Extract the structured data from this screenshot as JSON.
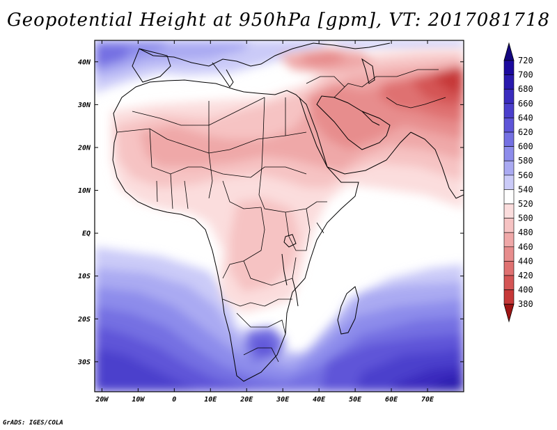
{
  "title": "Geopotential Height at 950hPa [gpm], VT: 2017081718",
  "credit": "GrADS: IGES/COLA",
  "map": {
    "region": "Africa, Arabia and western Indian Ocean",
    "lat_range": [
      -37,
      45
    ],
    "lon_range": [
      -22,
      80
    ],
    "lat_ticks": [
      {
        "value": 40,
        "label": "40N"
      },
      {
        "value": 30,
        "label": "30N"
      },
      {
        "value": 20,
        "label": "20N"
      },
      {
        "value": 10,
        "label": "10N"
      },
      {
        "value": 0,
        "label": "EQ"
      },
      {
        "value": -10,
        "label": "10S"
      },
      {
        "value": -20,
        "label": "20S"
      },
      {
        "value": -30,
        "label": "30S"
      }
    ],
    "lon_ticks": [
      {
        "value": -20,
        "label": "20W"
      },
      {
        "value": -10,
        "label": "10W"
      },
      {
        "value": 0,
        "label": "0"
      },
      {
        "value": 10,
        "label": "10E"
      },
      {
        "value": 20,
        "label": "20E"
      },
      {
        "value": 30,
        "label": "30E"
      },
      {
        "value": 40,
        "label": "40E"
      },
      {
        "value": 50,
        "label": "50E"
      },
      {
        "value": 60,
        "label": "60E"
      },
      {
        "value": 70,
        "label": "70E"
      }
    ]
  },
  "colorbar": {
    "levels": [
      {
        "label": "720",
        "color": "#1c0a9e"
      },
      {
        "label": "700",
        "color": "#2a1aae"
      },
      {
        "label": "680",
        "color": "#3a2cbe"
      },
      {
        "label": "660",
        "color": "#4b3fcc"
      },
      {
        "label": "640",
        "color": "#5e55d8"
      },
      {
        "label": "620",
        "color": "#7470e2"
      },
      {
        "label": "600",
        "color": "#8d8ceb"
      },
      {
        "label": "580",
        "color": "#aaaaf2"
      },
      {
        "label": "560",
        "color": "#cbcbf8"
      },
      {
        "label": "540",
        "color": "#ffffff"
      },
      {
        "label": "520",
        "color": "#fbdddd"
      },
      {
        "label": "500",
        "color": "#f6c3c3"
      },
      {
        "label": "480",
        "color": "#efa8a8"
      },
      {
        "label": "460",
        "color": "#e78d8d"
      },
      {
        "label": "440",
        "color": "#df7171"
      },
      {
        "label": "420",
        "color": "#d45555"
      },
      {
        "label": "400",
        "color": "#c63838"
      },
      {
        "label": "380",
        "color": "#b01e1e"
      }
    ],
    "top_arrow_color": "#14067f",
    "bottom_arrow_color": "#9e1414"
  }
}
